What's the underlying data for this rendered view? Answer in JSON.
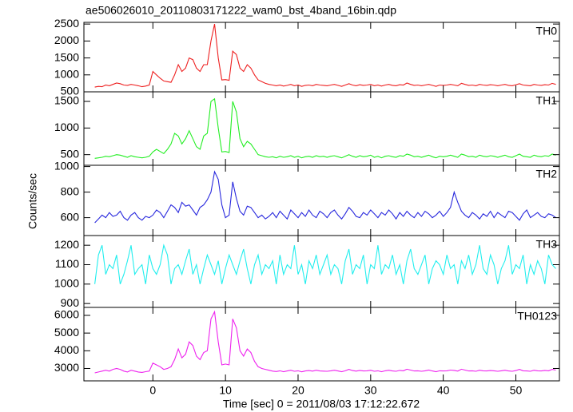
{
  "title": "ae506026010_20110803171222_wam0_bst_4band_16bin.qdp",
  "xlabel": "Time [sec] 0 = 2011/08/03 17:12:22.672",
  "ylabel": "Counts/sec",
  "xlim": [
    -9.5,
    56
  ],
  "xticks": [
    0,
    10,
    20,
    30,
    40,
    50
  ],
  "x": [
    -8,
    -7.5,
    -7,
    -6.5,
    -6,
    -5.5,
    -5,
    -4.5,
    -4,
    -3.5,
    -3,
    -2.5,
    -2,
    -1.5,
    -1,
    -0.5,
    0,
    0.5,
    1,
    1.5,
    2,
    2.5,
    3,
    3.5,
    4,
    4.5,
    5,
    5.5,
    6,
    6.5,
    7,
    7.5,
    8,
    8.5,
    9,
    9.5,
    10,
    10.5,
    11,
    11.5,
    12,
    12.5,
    13,
    13.5,
    14,
    14.5,
    15,
    15.5,
    16,
    16.5,
    17,
    17.5,
    18,
    18.5,
    19,
    19.5,
    20,
    20.5,
    21,
    21.5,
    22,
    22.5,
    23,
    23.5,
    24,
    24.5,
    25,
    25.5,
    26,
    26.5,
    27,
    27.5,
    28,
    28.5,
    29,
    29.5,
    30,
    30.5,
    31,
    31.5,
    32,
    32.5,
    33,
    33.5,
    34,
    34.5,
    35,
    35.5,
    36,
    36.5,
    37,
    37.5,
    38,
    38.5,
    39,
    39.5,
    40,
    40.5,
    41,
    41.5,
    42,
    42.5,
    43,
    43.5,
    44,
    44.5,
    45,
    45.5,
    46,
    46.5,
    47,
    47.5,
    48,
    48.5,
    49,
    49.5,
    50,
    50.5,
    51,
    51.5,
    52,
    52.5,
    53,
    53.5,
    54,
    54.5,
    55,
    55.5
  ],
  "chart_data": [
    {
      "type": "line",
      "name": "TH0",
      "color": "#ee2020",
      "ylim": [
        500,
        2550
      ],
      "yticks": [
        500,
        1000,
        1500,
        2000,
        2500
      ],
      "values": [
        640,
        660,
        650,
        700,
        680,
        720,
        760,
        740,
        700,
        690,
        720,
        700,
        680,
        650,
        670,
        700,
        1100,
        1000,
        900,
        820,
        800,
        780,
        1000,
        1300,
        1100,
        1200,
        1500,
        1450,
        1200,
        1100,
        1300,
        1300,
        2000,
        2500,
        1500,
        850,
        860,
        840,
        1700,
        1600,
        1200,
        1100,
        1300,
        1200,
        1000,
        850,
        800,
        750,
        720,
        700,
        680,
        700,
        670,
        690,
        720,
        680,
        700,
        660,
        690,
        700,
        680,
        720,
        700,
        690,
        680,
        700,
        720,
        690,
        660,
        700,
        740,
        700,
        680,
        710,
        690,
        700,
        720,
        680,
        700,
        670,
        700,
        720,
        690,
        680,
        710,
        700,
        760,
        720,
        690,
        700,
        680,
        700,
        720,
        690,
        660,
        700,
        690,
        700,
        720,
        700,
        680,
        750,
        720,
        690,
        700,
        680,
        720,
        700,
        690,
        710,
        700,
        680,
        700,
        720,
        690,
        680,
        710,
        740,
        700,
        690,
        680,
        720,
        700,
        690,
        710,
        700,
        750,
        720
      ]
    },
    {
      "type": "line",
      "name": "TH1",
      "color": "#22ee22",
      "ylim": [
        300,
        1680
      ],
      "yticks": [
        500,
        1000,
        1500
      ],
      "values": [
        430,
        440,
        450,
        470,
        460,
        480,
        500,
        490,
        470,
        450,
        480,
        460,
        450,
        440,
        450,
        470,
        550,
        600,
        560,
        520,
        600,
        700,
        900,
        850,
        700,
        800,
        950,
        800,
        650,
        600,
        850,
        900,
        1500,
        1550,
        1000,
        550,
        560,
        540,
        1500,
        1300,
        800,
        650,
        750,
        700,
        600,
        500,
        480,
        460,
        450,
        460,
        440,
        470,
        450,
        460,
        480,
        450,
        470,
        440,
        460,
        470,
        450,
        480,
        460,
        470,
        450,
        470,
        480,
        460,
        440,
        470,
        500,
        470,
        450,
        480,
        460,
        470,
        490,
        450,
        470,
        440,
        470,
        480,
        460,
        450,
        480,
        470,
        510,
        490,
        460,
        470,
        450,
        470,
        490,
        460,
        440,
        470,
        460,
        470,
        490,
        470,
        450,
        510,
        490,
        460,
        470,
        450,
        490,
        470,
        460,
        480,
        470,
        450,
        470,
        490,
        460,
        450,
        480,
        510,
        470,
        460,
        450,
        490,
        470,
        460,
        480,
        470,
        510,
        490
      ]
    },
    {
      "type": "line",
      "name": "TH2",
      "color": "#2828dd",
      "ylim": [
        460,
        1010
      ],
      "yticks": [
        600,
        800,
        1000
      ],
      "values": [
        560,
        590,
        620,
        600,
        640,
        610,
        620,
        650,
        600,
        580,
        620,
        640,
        600,
        580,
        610,
        600,
        620,
        660,
        640,
        600,
        650,
        700,
        680,
        640,
        720,
        690,
        700,
        660,
        620,
        680,
        700,
        740,
        800,
        960,
        900,
        700,
        600,
        620,
        880,
        750,
        650,
        620,
        690,
        680,
        640,
        600,
        620,
        590,
        610,
        640,
        600,
        650,
        620,
        590,
        660,
        630,
        600,
        640,
        610,
        660,
        620,
        600,
        650,
        630,
        600,
        640,
        660,
        620,
        590,
        630,
        680,
        650,
        610,
        600,
        640,
        620,
        660,
        630,
        600,
        640,
        620,
        660,
        630,
        590,
        640,
        610,
        650,
        620,
        600,
        640,
        610,
        650,
        630,
        600,
        620,
        650,
        610,
        640,
        680,
        800,
        720,
        650,
        620,
        600,
        640,
        620,
        590,
        630,
        610,
        650,
        600,
        640,
        620,
        600,
        650,
        640,
        610,
        580,
        630,
        660,
        600,
        620,
        640,
        610,
        600,
        630,
        620,
        600
      ]
    },
    {
      "type": "line",
      "name": "TH3",
      "color": "#22eeee",
      "ylim": [
        880,
        1250
      ],
      "yticks": [
        900,
        1000,
        1100,
        1200
      ],
      "values": [
        1000,
        1150,
        1200,
        1050,
        1100,
        1080,
        1150,
        1000,
        1050,
        1120,
        1200,
        1050,
        1080,
        1100,
        1000,
        1150,
        1080,
        1050,
        1100,
        1200,
        1150,
        1000,
        1080,
        1100,
        1050,
        1120,
        1180,
        1050,
        1100,
        1000,
        1080,
        1150,
        1100,
        1050,
        1120,
        1000,
        1080,
        1150,
        1100,
        1050,
        1120,
        1180,
        1080,
        1000,
        1100,
        1150,
        1050,
        1100,
        1080,
        1120,
        1000,
        1150,
        1050,
        1100,
        1080,
        1200,
        1050,
        1100,
        1000,
        1120,
        1080,
        1150,
        1050,
        1100,
        1150,
        1050,
        1100,
        1080,
        1000,
        1120,
        1180,
        1050,
        1100,
        1080,
        1150,
        1000,
        1100,
        1080,
        1200,
        1050,
        1100,
        1080,
        1150,
        1050,
        1100,
        1000,
        1120,
        1180,
        1080,
        1050,
        1100,
        1150,
        1000,
        1080,
        1120,
        1100,
        1050,
        1150,
        1080,
        1100,
        1000,
        1120,
        1080,
        1150,
        1050,
        1100,
        1200,
        1080,
        1050,
        1150,
        1100,
        1000,
        1080,
        1120,
        1200,
        1050,
        1100,
        1080,
        1150,
        1000,
        1100,
        1050,
        1120,
        1080,
        1000,
        1150,
        1100,
        1080
      ]
    },
    {
      "type": "line",
      "name": "TH0123",
      "color": "#ee22ee",
      "ylim": [
        2300,
        6450
      ],
      "yticks": [
        3000,
        4000,
        5000,
        6000
      ],
      "values": [
        2750,
        2800,
        2850,
        2900,
        2850,
        2950,
        3000,
        2950,
        2850,
        2800,
        2900,
        2850,
        2800,
        2780,
        2820,
        2850,
        3300,
        3200,
        3100,
        2950,
        3000,
        3100,
        3500,
        4100,
        3600,
        3800,
        4500,
        4300,
        3700,
        3500,
        3900,
        4000,
        5800,
        6200,
        4500,
        3200,
        3250,
        3200,
        5800,
        5300,
        4000,
        3700,
        4100,
        3900,
        3400,
        3100,
        3000,
        2950,
        2900,
        2850,
        2830,
        2870,
        2820,
        2860,
        2900,
        2840,
        2870,
        2810,
        2860,
        2880,
        2850,
        2900,
        2860,
        2850,
        2840,
        2870,
        2900,
        2860,
        2820,
        2870,
        2950,
        2880,
        2850,
        2890,
        2860,
        2870,
        2900,
        2840,
        2870,
        2820,
        2870,
        2900,
        2860,
        2840,
        2890,
        2870,
        2960,
        2910,
        2860,
        2870,
        2840,
        2870,
        2910,
        2860,
        2820,
        2870,
        2860,
        2870,
        2910,
        2890,
        2850,
        2960,
        2910,
        2860,
        2870,
        2840,
        2900,
        2870,
        2860,
        2880,
        2870,
        2840,
        2870,
        2900,
        2860,
        2840,
        2880,
        2950,
        2870,
        2860,
        2840,
        2900,
        2870,
        2860,
        2890,
        2870,
        2950,
        2910
      ]
    }
  ]
}
